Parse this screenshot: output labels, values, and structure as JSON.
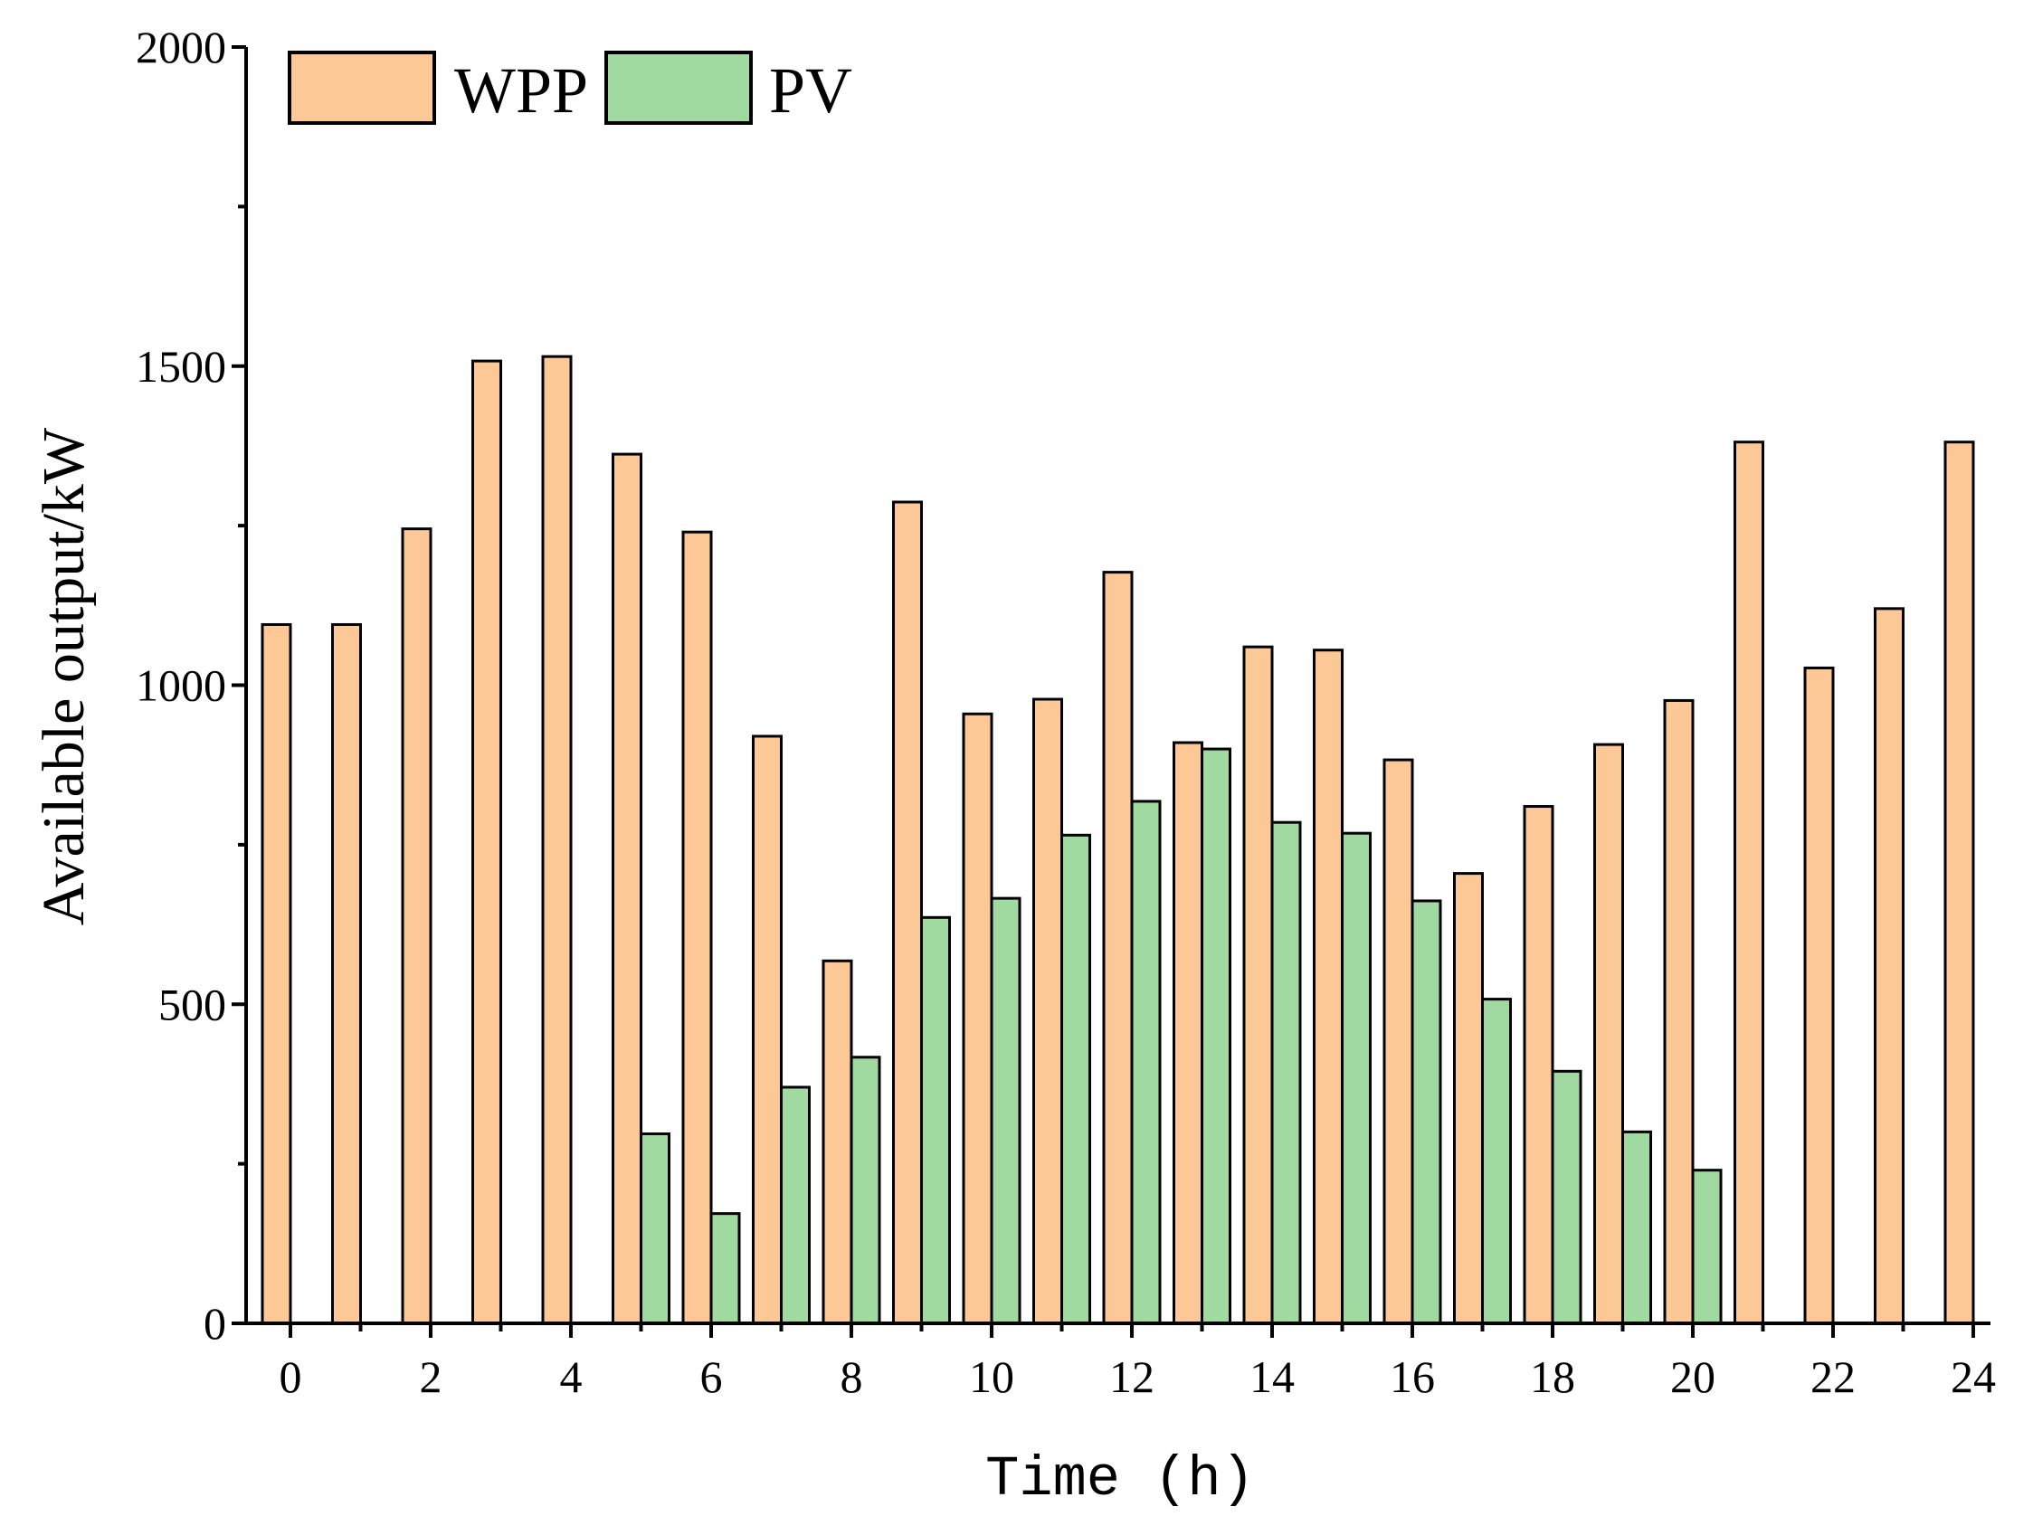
{
  "chart_data": {
    "type": "bar",
    "title": "",
    "xlabel": "Time (h)",
    "ylabel": "Available output/kW",
    "x": [
      0,
      1,
      2,
      3,
      4,
      5,
      6,
      7,
      8,
      9,
      10,
      11,
      12,
      13,
      14,
      15,
      16,
      17,
      18,
      19,
      20,
      21,
      22,
      23,
      24
    ],
    "x_tick_labels": [
      "0",
      "2",
      "4",
      "6",
      "8",
      "10",
      "12",
      "14",
      "16",
      "18",
      "20",
      "22",
      "24"
    ],
    "y_tick_labels": [
      "0",
      "500",
      "1000",
      "1500",
      "2000"
    ],
    "ylim": [
      0,
      2000
    ],
    "xlim": [
      -0.5,
      24.5
    ],
    "grid": false,
    "legend_position": "top-left",
    "series": [
      {
        "name": "WPP",
        "color": "#FCC896",
        "values": [
          1095,
          1095,
          1245,
          1508,
          1515,
          1362,
          1240,
          920,
          568,
          1287,
          955,
          978,
          1177,
          910,
          1060,
          1055,
          883,
          705,
          810,
          907,
          976,
          1381,
          1027,
          1120,
          1381
        ]
      },
      {
        "name": "PV",
        "color": "#A0DAA0",
        "values": [
          0,
          0,
          0,
          0,
          0,
          297,
          172,
          370,
          417,
          636,
          666,
          765,
          818,
          900,
          785,
          768,
          662,
          508,
          395,
          300,
          240,
          0,
          0,
          0,
          0
        ]
      }
    ]
  }
}
